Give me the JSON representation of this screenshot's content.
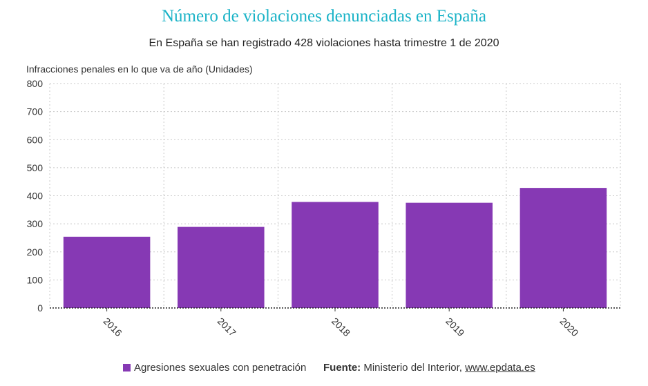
{
  "chart_data": {
    "type": "bar",
    "title": "Número de violaciones denunciadas en España",
    "subtitle": "En España se han registrado 428 violaciones hasta trimestre 1 de 2020",
    "ylabel": "Infracciones penales en lo que va de año (Unidades)",
    "xlabel": "",
    "categories": [
      "2016",
      "2017",
      "2018",
      "2019",
      "2020"
    ],
    "series": [
      {
        "name": "Agresiones sexuales con penetración",
        "values": [
          254,
          289,
          378,
          375,
          428
        ],
        "color": "#8639b4"
      }
    ],
    "ylim": [
      0,
      800
    ],
    "yticks": [
      "0",
      "100",
      "200",
      "300",
      "400",
      "500",
      "600",
      "700",
      "800"
    ],
    "grid": true,
    "legend": "bottom"
  },
  "footer": {
    "source_label": "Fuente:",
    "source_text": "Ministerio del Interior,",
    "source_link": "www.epdata.es"
  }
}
